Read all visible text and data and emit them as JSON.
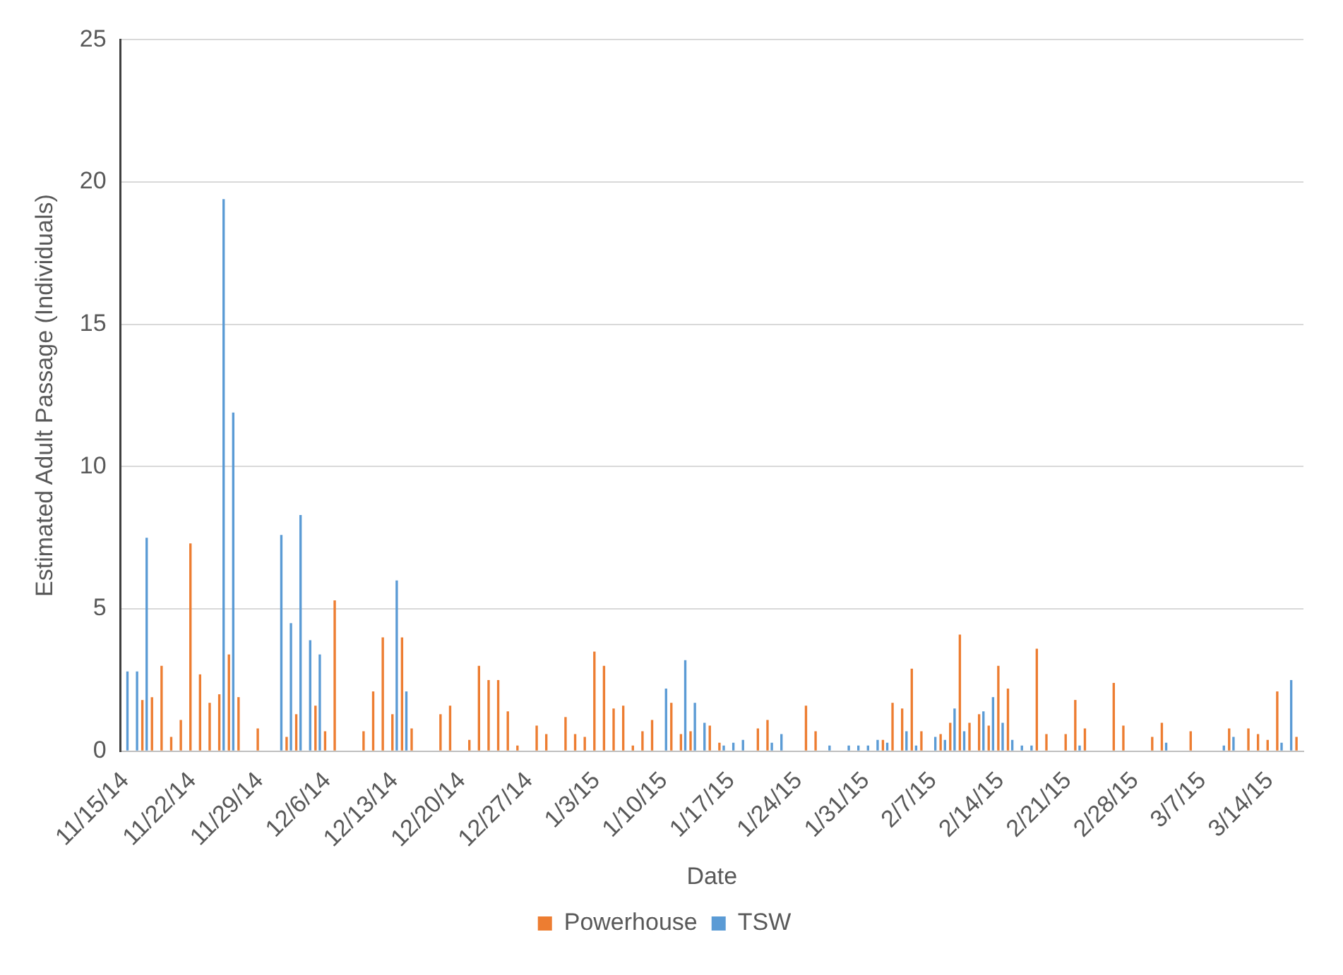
{
  "chart_data": {
    "type": "bar",
    "xlabel": "Date",
    "ylabel": "Estimated Adult Passage (Individuals)",
    "categories": [
      "11/15/14",
      null,
      null,
      null,
      null,
      null,
      null,
      "11/22/14",
      null,
      null,
      null,
      null,
      null,
      null,
      "11/29/14",
      null,
      null,
      null,
      null,
      null,
      null,
      "12/6/14",
      null,
      null,
      null,
      null,
      null,
      null,
      "12/13/14",
      null,
      null,
      null,
      null,
      null,
      null,
      "12/20/14",
      null,
      null,
      null,
      null,
      null,
      null,
      "12/27/14",
      null,
      null,
      null,
      null,
      null,
      null,
      "1/3/15",
      null,
      null,
      null,
      null,
      null,
      null,
      "1/10/15",
      null,
      null,
      null,
      null,
      null,
      null,
      "1/17/15",
      null,
      null,
      null,
      null,
      null,
      null,
      "1/24/15",
      null,
      null,
      null,
      null,
      null,
      null,
      "1/31/15",
      null,
      null,
      null,
      null,
      null,
      null,
      "2/7/15",
      null,
      null,
      null,
      null,
      null,
      null,
      "2/14/15",
      null,
      null,
      null,
      null,
      null,
      null,
      "2/21/15",
      null,
      null,
      null,
      null,
      null,
      null,
      "2/28/15",
      null,
      null,
      null,
      null,
      null,
      null,
      "3/7/15",
      null,
      null,
      null,
      null,
      null,
      null,
      "3/14/15",
      null,
      null,
      null
    ],
    "series": [
      {
        "name": "Powerhouse",
        "color": "#ed7d31",
        "values": [
          null,
          null,
          1.8,
          1.9,
          3.0,
          0.5,
          1.1,
          7.3,
          2.7,
          1.7,
          2.0,
          3.4,
          1.9,
          null,
          0.8,
          null,
          null,
          0.5,
          1.3,
          null,
          1.6,
          0.7,
          5.3,
          null,
          null,
          0.7,
          2.1,
          4.0,
          1.3,
          4.0,
          0.8,
          null,
          null,
          1.3,
          1.6,
          null,
          0.4,
          3.0,
          2.5,
          2.5,
          1.4,
          0.2,
          null,
          0.9,
          0.6,
          null,
          1.2,
          0.6,
          0.5,
          3.5,
          3.0,
          1.5,
          1.6,
          0.2,
          0.7,
          1.1,
          null,
          1.7,
          0.6,
          0.7,
          null,
          0.9,
          0.3,
          null,
          null,
          null,
          0.8,
          1.1,
          null,
          null,
          null,
          1.6,
          0.7,
          null,
          null,
          null,
          null,
          null,
          null,
          0.4,
          1.7,
          1.5,
          2.9,
          0.7,
          null,
          0.6,
          1.0,
          4.1,
          1.0,
          1.3,
          0.9,
          3.0,
          2.2,
          null,
          null,
          3.6,
          0.6,
          null,
          0.6,
          1.8,
          0.8,
          null,
          null,
          2.4,
          0.9,
          null,
          null,
          0.5,
          1.0,
          null,
          null,
          0.7,
          null,
          null,
          null,
          0.8,
          null,
          0.8,
          0.6,
          0.4,
          2.1,
          null,
          0.5
        ]
      },
      {
        "name": "TSW",
        "color": "#5b9bd5",
        "values": [
          2.8,
          2.8,
          7.5,
          null,
          null,
          null,
          null,
          null,
          null,
          null,
          19.4,
          11.9,
          null,
          null,
          null,
          null,
          7.6,
          4.5,
          8.3,
          3.9,
          3.4,
          null,
          null,
          null,
          null,
          null,
          null,
          null,
          6.0,
          2.1,
          null,
          null,
          null,
          null,
          null,
          null,
          null,
          null,
          null,
          null,
          null,
          null,
          null,
          null,
          null,
          null,
          null,
          null,
          null,
          null,
          null,
          null,
          null,
          null,
          null,
          null,
          2.2,
          null,
          3.2,
          1.7,
          1.0,
          null,
          0.2,
          0.3,
          0.4,
          null,
          null,
          0.3,
          0.6,
          null,
          null,
          null,
          null,
          0.2,
          null,
          0.2,
          0.2,
          0.2,
          0.4,
          0.3,
          null,
          0.7,
          0.2,
          null,
          0.5,
          0.4,
          1.5,
          0.7,
          null,
          1.4,
          1.9,
          1.0,
          0.4,
          0.2,
          0.2,
          null,
          null,
          null,
          null,
          0.2,
          null,
          null,
          null,
          null,
          null,
          null,
          null,
          null,
          0.3,
          null,
          null,
          null,
          null,
          null,
          0.2,
          0.5,
          null,
          null,
          null,
          null,
          0.3,
          2.5,
          null
        ]
      }
    ],
    "ylim": [
      0,
      25
    ],
    "yticks": [
      0,
      5,
      10,
      15,
      20,
      25
    ],
    "grid": "y",
    "legend": "bottom"
  }
}
